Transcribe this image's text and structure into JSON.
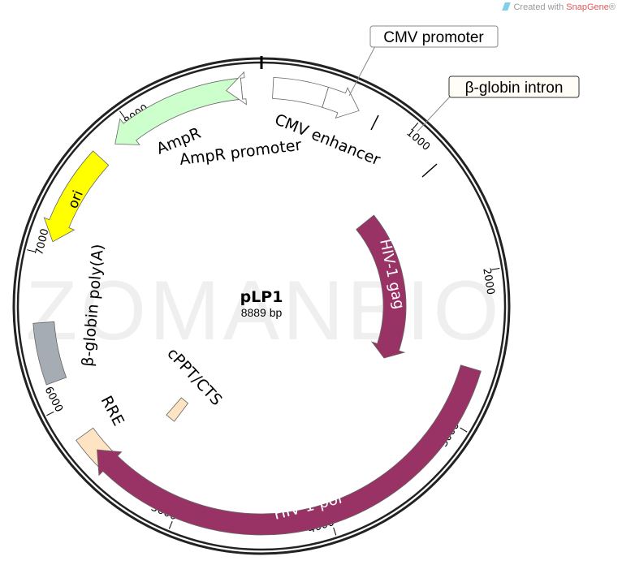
{
  "credit": {
    "prefix": "Created with ",
    "brand": "SnapGene",
    "suffix": "®"
  },
  "watermark": "ZOMANBIO",
  "plasmid": {
    "name": "pLP1",
    "length_label": "8889 bp",
    "length": 8889
  },
  "ticks": [
    "1000",
    "2000",
    "3000",
    "4000",
    "5000",
    "6000",
    "7000",
    "8000"
  ],
  "features": [
    {
      "id": "cmv-enhancer",
      "label": "CMV enhancer",
      "start": 75,
      "end": 420,
      "dir": "none",
      "ring": "outer",
      "color": "#ffffff"
    },
    {
      "id": "cmv-promoter",
      "label": "CMV promoter",
      "start": 420,
      "end": 655,
      "dir": "cw",
      "ring": "outer",
      "color": "#ffffff"
    },
    {
      "id": "ampr-promoter",
      "label": "AmpR promoter",
      "start": 8660,
      "end": 8760,
      "dir": "ccw",
      "ring": "outer",
      "color": "#ffffff"
    },
    {
      "id": "ampr",
      "label": "AmpR",
      "start": 7850,
      "end": 8760,
      "dir": "ccw",
      "ring": "outer",
      "color": "#ccffcc"
    },
    {
      "id": "ori",
      "label": "ori",
      "start": 7090,
      "end": 7720,
      "dir": "ccw",
      "ring": "outer",
      "color": "#ffff00"
    },
    {
      "id": "beta-globin-polya",
      "label": "β-globin poly(A)",
      "start": 6170,
      "end": 6560,
      "dir": "none",
      "ring": "outer",
      "color": "#a6acb3"
    },
    {
      "id": "rre",
      "label": "RRE",
      "start": 5530,
      "end": 5780,
      "dir": "none",
      "ring": "outer",
      "color": "#ffe4c4"
    },
    {
      "id": "cppt-cts",
      "label": "cPPT/CTS",
      "start": 5360,
      "end": 5460,
      "dir": "none",
      "ring": "inner",
      "color": "#ffe4c4"
    },
    {
      "id": "hiv1-gag",
      "label": "HIV-1 gag",
      "start": 1260,
      "end": 2790,
      "dir": "cw",
      "ring": "inner",
      "color": "#993366"
    },
    {
      "id": "hiv1-pol",
      "label": "HIV-1 pol",
      "start": 2630,
      "end": 5650,
      "dir": "cw",
      "ring": "outer",
      "color": "#993366"
    }
  ],
  "callouts": {
    "cmv_promoter": "CMV promoter",
    "beta_globin_intron": "β-globin intron"
  }
}
